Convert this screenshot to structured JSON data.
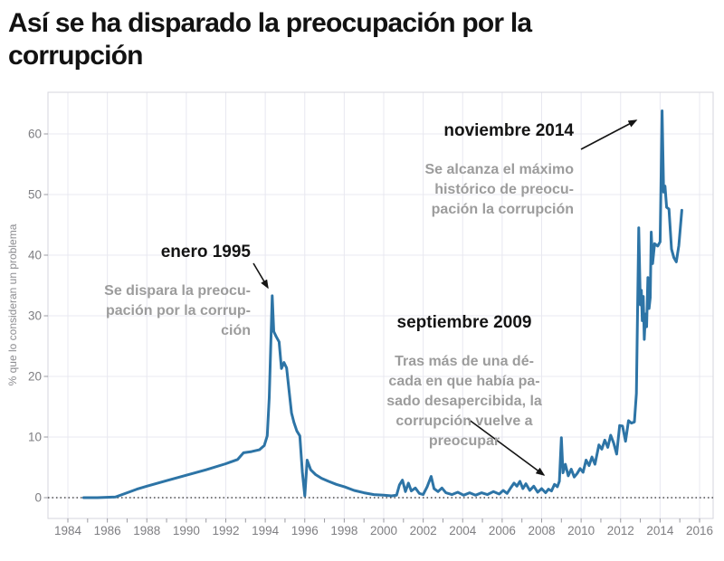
{
  "page": {
    "title": "Así se ha disparado la preocupación por la\ncorrupción"
  },
  "chart_data": {
    "type": "line",
    "title": "Así se ha disparado la preocupación por la corrupción",
    "xlabel": "",
    "ylabel": "% que lo consideran un problema",
    "x_ticks": [
      1984,
      1986,
      1988,
      1990,
      1992,
      1994,
      1996,
      1998,
      2000,
      2002,
      2004,
      2006,
      2008,
      2010,
      2012,
      2014,
      2016
    ],
    "y_ticks": [
      0,
      10,
      20,
      30,
      40,
      50,
      60
    ],
    "xlim": [
      1983,
      2016.8
    ],
    "ylim": [
      -3.4,
      66.9
    ],
    "grid": true,
    "legend": "none",
    "line_color": "#2d74a6",
    "zero_line": "dotted",
    "series": [
      {
        "name": "% que lo consideran un problema",
        "points": [
          [
            1984.8,
            0
          ],
          [
            1985.5,
            0
          ],
          [
            1986.4,
            0.1
          ],
          [
            1987.0,
            0.8
          ],
          [
            1987.5,
            1.4
          ],
          [
            1988.0,
            1.9
          ],
          [
            1989.0,
            2.8
          ],
          [
            1990.0,
            3.7
          ],
          [
            1991.0,
            4.6
          ],
          [
            1992.0,
            5.6
          ],
          [
            1992.6,
            6.3
          ],
          [
            1992.9,
            7.4
          ],
          [
            1993.3,
            7.6
          ],
          [
            1993.7,
            7.9
          ],
          [
            1993.95,
            8.6
          ],
          [
            1994.1,
            10.2
          ],
          [
            1994.2,
            16.5
          ],
          [
            1994.35,
            33.3
          ],
          [
            1994.43,
            27.4
          ],
          [
            1994.55,
            26.6
          ],
          [
            1994.7,
            25.7
          ],
          [
            1994.82,
            21.3
          ],
          [
            1994.95,
            22.3
          ],
          [
            1995.08,
            21.4
          ],
          [
            1995.2,
            17.8
          ],
          [
            1995.33,
            14.0
          ],
          [
            1995.45,
            12.4
          ],
          [
            1995.6,
            11.0
          ],
          [
            1995.75,
            10.2
          ],
          [
            1995.88,
            4.2
          ],
          [
            1996.0,
            0.3
          ],
          [
            1996.12,
            6.2
          ],
          [
            1996.3,
            4.6
          ],
          [
            1996.55,
            3.8
          ],
          [
            1996.85,
            3.2
          ],
          [
            1997.2,
            2.7
          ],
          [
            1997.6,
            2.2
          ],
          [
            1998.0,
            1.8
          ],
          [
            1998.5,
            1.2
          ],
          [
            1999.0,
            0.8
          ],
          [
            1999.5,
            0.5
          ],
          [
            2000.0,
            0.4
          ],
          [
            2000.4,
            0.3
          ],
          [
            2000.65,
            0.4
          ],
          [
            2000.8,
            2.1
          ],
          [
            2000.95,
            2.9
          ],
          [
            2001.1,
            1.0
          ],
          [
            2001.25,
            2.4
          ],
          [
            2001.4,
            1.1
          ],
          [
            2001.6,
            1.6
          ],
          [
            2001.8,
            0.7
          ],
          [
            2002.0,
            0.5
          ],
          [
            2002.2,
            1.8
          ],
          [
            2002.4,
            3.5
          ],
          [
            2002.55,
            1.5
          ],
          [
            2002.75,
            1.0
          ],
          [
            2002.95,
            1.6
          ],
          [
            2003.15,
            0.8
          ],
          [
            2003.45,
            0.5
          ],
          [
            2003.75,
            0.9
          ],
          [
            2004.05,
            0.4
          ],
          [
            2004.35,
            0.8
          ],
          [
            2004.65,
            0.4
          ],
          [
            2004.95,
            0.8
          ],
          [
            2005.25,
            0.5
          ],
          [
            2005.55,
            1.0
          ],
          [
            2005.85,
            0.6
          ],
          [
            2006.05,
            1.2
          ],
          [
            2006.25,
            0.7
          ],
          [
            2006.45,
            1.7
          ],
          [
            2006.6,
            2.4
          ],
          [
            2006.75,
            1.9
          ],
          [
            2006.9,
            2.7
          ],
          [
            2007.05,
            1.5
          ],
          [
            2007.2,
            2.3
          ],
          [
            2007.4,
            1.2
          ],
          [
            2007.6,
            1.9
          ],
          [
            2007.8,
            0.9
          ],
          [
            2008.0,
            1.5
          ],
          [
            2008.2,
            0.8
          ],
          [
            2008.35,
            1.4
          ],
          [
            2008.5,
            1.1
          ],
          [
            2008.65,
            2.2
          ],
          [
            2008.8,
            1.8
          ],
          [
            2008.9,
            2.7
          ],
          [
            2009.0,
            9.9
          ],
          [
            2009.08,
            4.1
          ],
          [
            2009.2,
            5.5
          ],
          [
            2009.35,
            3.6
          ],
          [
            2009.5,
            4.7
          ],
          [
            2009.65,
            3.4
          ],
          [
            2009.8,
            4.0
          ],
          [
            2009.95,
            4.8
          ],
          [
            2010.1,
            4.2
          ],
          [
            2010.25,
            6.2
          ],
          [
            2010.4,
            5.3
          ],
          [
            2010.55,
            6.7
          ],
          [
            2010.7,
            5.5
          ],
          [
            2010.9,
            8.7
          ],
          [
            2011.05,
            8.0
          ],
          [
            2011.2,
            9.5
          ],
          [
            2011.35,
            8.3
          ],
          [
            2011.5,
            10.3
          ],
          [
            2011.65,
            9.0
          ],
          [
            2011.8,
            7.2
          ],
          [
            2011.95,
            11.9
          ],
          [
            2012.1,
            11.8
          ],
          [
            2012.25,
            9.3
          ],
          [
            2012.4,
            12.7
          ],
          [
            2012.55,
            12.3
          ],
          [
            2012.7,
            12.5
          ],
          [
            2012.8,
            17.2
          ],
          [
            2012.92,
            44.5
          ],
          [
            2013.0,
            31.8
          ],
          [
            2013.05,
            34.2
          ],
          [
            2013.1,
            29.2
          ],
          [
            2013.15,
            33.2
          ],
          [
            2013.2,
            26.1
          ],
          [
            2013.26,
            30.3
          ],
          [
            2013.32,
            28.2
          ],
          [
            2013.38,
            36.3
          ],
          [
            2013.44,
            31.2
          ],
          [
            2013.5,
            33.0
          ],
          [
            2013.55,
            43.8
          ],
          [
            2013.62,
            38.6
          ],
          [
            2013.72,
            41.9
          ],
          [
            2013.88,
            41.5
          ],
          [
            2014.0,
            42.2
          ],
          [
            2014.1,
            63.8
          ],
          [
            2014.18,
            50.4
          ],
          [
            2014.25,
            51.4
          ],
          [
            2014.33,
            47.9
          ],
          [
            2014.45,
            47.6
          ],
          [
            2014.58,
            41.0
          ],
          [
            2014.7,
            39.6
          ],
          [
            2014.82,
            38.9
          ],
          [
            2014.95,
            41.6
          ],
          [
            2015.1,
            47.4
          ]
        ]
      }
    ],
    "annotations": [
      {
        "title": "enero 1995",
        "text": "Se dispara la preocu-\npación por la corrup-\nción",
        "points_to": "peak 33.3 in January 1995"
      },
      {
        "title": "septiembre 2009",
        "text": "Tras más de una dé-\ncada en que había pa-\nsado desapercibida, la\ncorrupción vuelve a\npreocupar",
        "points_to": "start of the rise in 2009"
      },
      {
        "title": "noviembre 2014",
        "text": "Se alcanza el máximo\nhistórico de preocu-\npación la corrupción",
        "points_to": "historic maximum 63.8 in November 2014"
      }
    ]
  }
}
